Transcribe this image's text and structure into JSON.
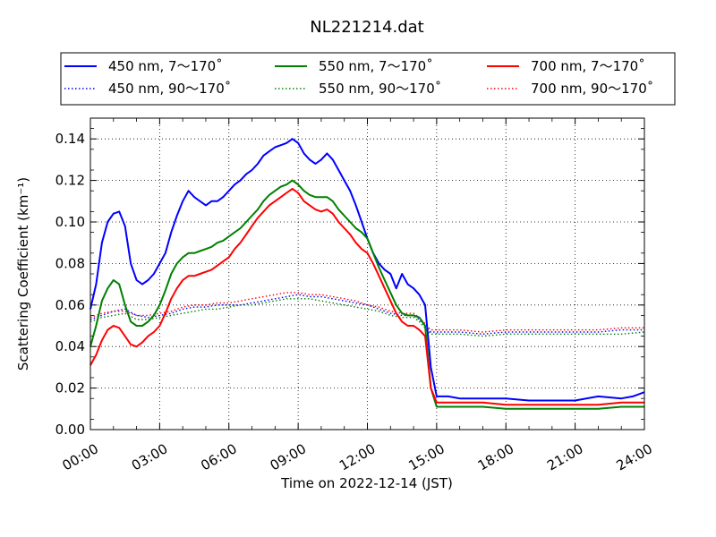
{
  "chart_data": {
    "type": "line",
    "title": "NL221214.dat",
    "xlabel": "Time on 2022-12-14 (JST)",
    "ylabel": "Scattering Coefficient (km⁻¹)",
    "xlim": [
      0,
      24
    ],
    "ylim": [
      0,
      0.15
    ],
    "x_ticks": [
      "00:00",
      "03:00",
      "06:00",
      "09:00",
      "12:00",
      "15:00",
      "18:00",
      "21:00",
      "24:00"
    ],
    "y_ticks": [
      "0.00",
      "0.02",
      "0.04",
      "0.06",
      "0.08",
      "0.10",
      "0.12",
      "0.14"
    ],
    "x_unit": "hours",
    "grid": true,
    "legend_position": "top",
    "series": [
      {
        "name": "450 nm, 7～170˚",
        "color": "#0000ff",
        "style": "solid",
        "x": [
          0,
          0.25,
          0.5,
          0.75,
          1.0,
          1.25,
          1.5,
          1.75,
          2.0,
          2.25,
          2.5,
          2.75,
          3.0,
          3.25,
          3.5,
          3.75,
          4.0,
          4.25,
          4.5,
          4.75,
          5.0,
          5.25,
          5.5,
          5.75,
          6.0,
          6.25,
          6.5,
          6.75,
          7.0,
          7.25,
          7.5,
          7.75,
          8.0,
          8.25,
          8.5,
          8.75,
          9.0,
          9.25,
          9.5,
          9.75,
          10.0,
          10.25,
          10.5,
          10.75,
          11.0,
          11.25,
          11.5,
          11.75,
          12.0,
          12.25,
          12.5,
          12.75,
          13.0,
          13.25,
          13.5,
          13.75,
          14.0,
          14.25,
          14.5,
          14.75,
          15.0,
          15.5,
          16.0,
          17.0,
          18.0,
          19.0,
          20.0,
          21.0,
          22.0,
          23.0,
          23.5,
          24.0
        ],
        "y": [
          0.058,
          0.07,
          0.09,
          0.1,
          0.104,
          0.105,
          0.098,
          0.08,
          0.072,
          0.07,
          0.072,
          0.075,
          0.08,
          0.085,
          0.095,
          0.103,
          0.11,
          0.115,
          0.112,
          0.11,
          0.108,
          0.11,
          0.11,
          0.112,
          0.115,
          0.118,
          0.12,
          0.123,
          0.125,
          0.128,
          0.132,
          0.134,
          0.136,
          0.137,
          0.138,
          0.14,
          0.138,
          0.133,
          0.13,
          0.128,
          0.13,
          0.133,
          0.13,
          0.125,
          0.12,
          0.115,
          0.108,
          0.1,
          0.092,
          0.085,
          0.08,
          0.077,
          0.075,
          0.068,
          0.075,
          0.07,
          0.068,
          0.065,
          0.06,
          0.03,
          0.016,
          0.016,
          0.015,
          0.015,
          0.015,
          0.014,
          0.014,
          0.014,
          0.016,
          0.015,
          0.016,
          0.018
        ]
      },
      {
        "name": "450 nm, 90～170˚",
        "color": "#0000ff",
        "style": "dotted",
        "x": [
          0,
          0.5,
          1,
          1.5,
          2,
          2.5,
          3,
          3.5,
          4,
          4.5,
          5,
          5.5,
          6,
          6.5,
          7,
          7.5,
          8,
          8.5,
          9,
          9.5,
          10,
          10.5,
          11,
          11.5,
          12,
          12.5,
          13,
          13.5,
          14,
          14.25,
          14.5,
          14.75,
          15,
          16,
          17,
          18,
          19,
          20,
          21,
          22,
          23,
          24
        ],
        "y": [
          0.053,
          0.055,
          0.057,
          0.058,
          0.055,
          0.054,
          0.055,
          0.056,
          0.058,
          0.059,
          0.059,
          0.06,
          0.06,
          0.06,
          0.061,
          0.062,
          0.063,
          0.064,
          0.065,
          0.064,
          0.064,
          0.063,
          0.062,
          0.061,
          0.06,
          0.058,
          0.056,
          0.055,
          0.055,
          0.053,
          0.05,
          0.047,
          0.047,
          0.047,
          0.046,
          0.047,
          0.047,
          0.047,
          0.047,
          0.047,
          0.048,
          0.048
        ]
      },
      {
        "name": "550 nm, 7～170˚",
        "color": "#008000",
        "style": "solid",
        "x": [
          0,
          0.25,
          0.5,
          0.75,
          1.0,
          1.25,
          1.5,
          1.75,
          2.0,
          2.25,
          2.5,
          2.75,
          3.0,
          3.25,
          3.5,
          3.75,
          4.0,
          4.25,
          4.5,
          4.75,
          5.0,
          5.25,
          5.5,
          5.75,
          6.0,
          6.25,
          6.5,
          6.75,
          7.0,
          7.25,
          7.5,
          7.75,
          8.0,
          8.25,
          8.5,
          8.75,
          9.0,
          9.25,
          9.5,
          9.75,
          10.0,
          10.25,
          10.5,
          10.75,
          11.0,
          11.25,
          11.5,
          11.75,
          12.0,
          12.25,
          12.5,
          12.75,
          13.0,
          13.25,
          13.5,
          13.75,
          14.0,
          14.25,
          14.5,
          14.75,
          15.0,
          15.5,
          16.0,
          17.0,
          18.0,
          19.0,
          20.0,
          21.0,
          22.0,
          23.0,
          23.5,
          24.0
        ],
        "y": [
          0.04,
          0.05,
          0.062,
          0.068,
          0.072,
          0.07,
          0.06,
          0.052,
          0.05,
          0.05,
          0.052,
          0.055,
          0.06,
          0.067,
          0.075,
          0.08,
          0.083,
          0.085,
          0.085,
          0.086,
          0.087,
          0.088,
          0.09,
          0.091,
          0.093,
          0.095,
          0.097,
          0.1,
          0.103,
          0.106,
          0.11,
          0.113,
          0.115,
          0.117,
          0.118,
          0.12,
          0.118,
          0.115,
          0.113,
          0.112,
          0.112,
          0.112,
          0.11,
          0.106,
          0.103,
          0.1,
          0.097,
          0.095,
          0.092,
          0.085,
          0.078,
          0.072,
          0.066,
          0.06,
          0.056,
          0.055,
          0.055,
          0.054,
          0.05,
          0.02,
          0.011,
          0.011,
          0.011,
          0.011,
          0.01,
          0.01,
          0.01,
          0.01,
          0.01,
          0.011,
          0.011,
          0.011
        ]
      },
      {
        "name": "550 nm, 90～170˚",
        "color": "#008000",
        "style": "dotted",
        "x": [
          0,
          0.5,
          1,
          1.5,
          2,
          2.5,
          3,
          3.5,
          4,
          4.5,
          5,
          5.5,
          6,
          6.5,
          7,
          7.5,
          8,
          8.5,
          9,
          9.5,
          10,
          10.5,
          11,
          11.5,
          12,
          12.5,
          13,
          13.5,
          14,
          14.25,
          14.5,
          14.75,
          15,
          16,
          17,
          18,
          19,
          20,
          21,
          22,
          23,
          24
        ],
        "y": [
          0.052,
          0.054,
          0.055,
          0.056,
          0.053,
          0.053,
          0.054,
          0.055,
          0.056,
          0.057,
          0.058,
          0.058,
          0.059,
          0.06,
          0.06,
          0.061,
          0.062,
          0.063,
          0.063,
          0.063,
          0.062,
          0.061,
          0.06,
          0.059,
          0.058,
          0.057,
          0.055,
          0.054,
          0.054,
          0.052,
          0.049,
          0.046,
          0.046,
          0.046,
          0.045,
          0.046,
          0.046,
          0.046,
          0.046,
          0.046,
          0.046,
          0.047
        ]
      },
      {
        "name": "700 nm, 7～170˚",
        "color": "#ff0000",
        "style": "solid",
        "x": [
          0,
          0.25,
          0.5,
          0.75,
          1.0,
          1.25,
          1.5,
          1.75,
          2.0,
          2.25,
          2.5,
          2.75,
          3.0,
          3.25,
          3.5,
          3.75,
          4.0,
          4.25,
          4.5,
          4.75,
          5.0,
          5.25,
          5.5,
          5.75,
          6.0,
          6.25,
          6.5,
          6.75,
          7.0,
          7.25,
          7.5,
          7.75,
          8.0,
          8.25,
          8.5,
          8.75,
          9.0,
          9.25,
          9.5,
          9.75,
          10.0,
          10.25,
          10.5,
          10.75,
          11.0,
          11.25,
          11.5,
          11.75,
          12.0,
          12.25,
          12.5,
          12.75,
          13.0,
          13.25,
          13.5,
          13.75,
          14.0,
          14.25,
          14.5,
          14.75,
          15.0,
          15.5,
          16.0,
          17.0,
          18.0,
          19.0,
          20.0,
          21.0,
          22.0,
          23.0,
          23.5,
          24.0
        ],
        "y": [
          0.031,
          0.036,
          0.043,
          0.048,
          0.05,
          0.049,
          0.045,
          0.041,
          0.04,
          0.042,
          0.045,
          0.047,
          0.05,
          0.056,
          0.063,
          0.068,
          0.072,
          0.074,
          0.074,
          0.075,
          0.076,
          0.077,
          0.079,
          0.081,
          0.083,
          0.087,
          0.09,
          0.094,
          0.098,
          0.102,
          0.105,
          0.108,
          0.11,
          0.112,
          0.114,
          0.116,
          0.114,
          0.11,
          0.108,
          0.106,
          0.105,
          0.106,
          0.104,
          0.1,
          0.097,
          0.094,
          0.09,
          0.087,
          0.085,
          0.08,
          0.074,
          0.068,
          0.062,
          0.056,
          0.052,
          0.05,
          0.05,
          0.048,
          0.045,
          0.02,
          0.013,
          0.013,
          0.013,
          0.013,
          0.012,
          0.012,
          0.012,
          0.012,
          0.012,
          0.013,
          0.013,
          0.013
        ]
      },
      {
        "name": "700 nm, 90～170˚",
        "color": "#ff0000",
        "style": "dotted",
        "x": [
          0,
          0.5,
          1,
          1.5,
          2,
          2.5,
          3,
          3.5,
          4,
          4.5,
          5,
          5.5,
          6,
          6.5,
          7,
          7.5,
          8,
          8.5,
          9,
          9.5,
          10,
          10.5,
          11,
          11.5,
          12,
          12.5,
          13,
          13.5,
          14,
          14.25,
          14.5,
          14.75,
          15,
          16,
          17,
          18,
          19,
          20,
          21,
          22,
          23,
          24
        ],
        "y": [
          0.054,
          0.056,
          0.057,
          0.057,
          0.055,
          0.055,
          0.056,
          0.057,
          0.059,
          0.06,
          0.06,
          0.061,
          0.061,
          0.062,
          0.063,
          0.064,
          0.065,
          0.066,
          0.066,
          0.065,
          0.065,
          0.064,
          0.063,
          0.062,
          0.06,
          0.059,
          0.057,
          0.056,
          0.056,
          0.054,
          0.051,
          0.048,
          0.048,
          0.048,
          0.047,
          0.048,
          0.048,
          0.048,
          0.048,
          0.048,
          0.049,
          0.049
        ]
      }
    ]
  }
}
